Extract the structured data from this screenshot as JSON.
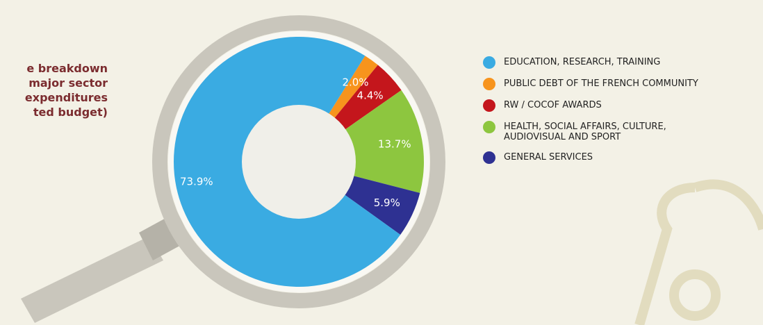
{
  "chart_data": {
    "type": "pie",
    "title_lines": [
      "e breakdown",
      "major sector",
      "expenditures",
      "ted budget)"
    ],
    "categories": [
      "EDUCATION, RESEARCH, TRAINING",
      "PUBLIC DEBT OF THE FRENCH COMMUNITY",
      "RW / COCOF AWARDS",
      "HEALTH, SOCIAL AFFAIRS, CULTURE, AUDIOVISUAL AND SPORT",
      "GENERAL SERVICES"
    ],
    "values": [
      73.9,
      2.0,
      4.4,
      13.7,
      5.9
    ],
    "value_labels": [
      "73.9%",
      "2.0%",
      "4.4%",
      "13.7%",
      "5.9%"
    ],
    "colors": [
      "#3aabe2",
      "#f7941d",
      "#c4161c",
      "#8dc63f",
      "#2e3192"
    ],
    "legend": "right"
  }
}
